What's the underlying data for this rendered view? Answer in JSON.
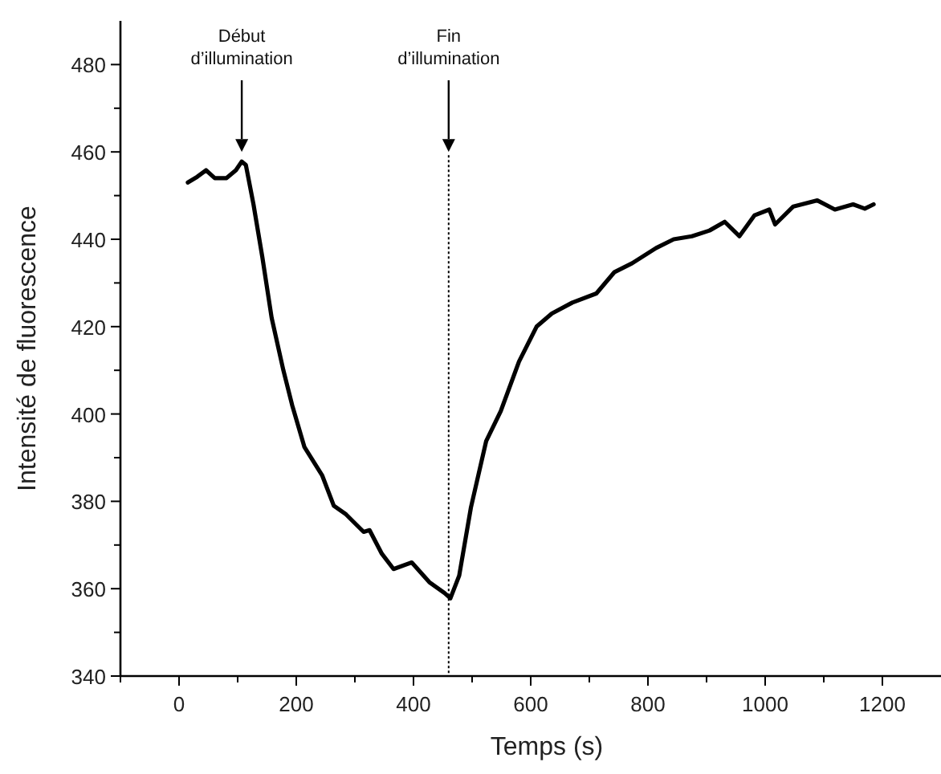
{
  "chart_data": {
    "type": "line",
    "xlabel": "Temps  (s)",
    "ylabel": "Intensité de fluorescence",
    "xlim": [
      -100,
      1300
    ],
    "ylim": [
      340,
      490
    ],
    "xticks": [
      {
        "value": -100,
        "label": null
      },
      0,
      {
        "value": 100,
        "label": null
      },
      200,
      {
        "value": 300,
        "label": null
      },
      400,
      {
        "value": 500,
        "label": null
      },
      600,
      {
        "value": 700,
        "label": null
      },
      800,
      {
        "value": 900,
        "label": null
      },
      1000,
      {
        "value": 1100,
        "label": null
      },
      1200
    ],
    "yticks": [
      340,
      {
        "value": 350,
        "label": null
      },
      360,
      {
        "value": 370,
        "label": null
      },
      380,
      {
        "value": 390,
        "label": null
      },
      400,
      {
        "value": 410,
        "label": null
      },
      420,
      {
        "value": 430,
        "label": null
      },
      440,
      {
        "value": 450,
        "label": null
      },
      460,
      {
        "value": 470,
        "label": null
      },
      480
    ],
    "grid": false,
    "marker": "none",
    "line_style": "solid",
    "series": [
      {
        "color": "#000000",
        "x": [
          15,
          31,
          46,
          61,
          81,
          97,
          107,
          114,
          127,
          142,
          158,
          178,
          193,
          214,
          244,
          264,
          285,
          315,
          325,
          346,
          366,
          397,
          427,
          453,
          463,
          478,
          498,
          524,
          549,
          580,
          610,
          636,
          671,
          712,
          743,
          773,
          814,
          844,
          875,
          905,
          931,
          956,
          982,
          1007,
          1017,
          1048,
          1089,
          1119,
          1150,
          1170,
          1185
        ],
        "values": [
          453,
          454.3,
          455.8,
          454,
          454,
          455.8,
          457.8,
          457,
          448,
          436,
          422,
          410,
          402,
          392.4,
          386,
          379,
          377,
          373,
          373.4,
          368,
          364.5,
          366,
          361.5,
          359,
          357.8,
          363,
          378.6,
          393.8,
          400.7,
          412,
          420,
          423,
          425.5,
          427.6,
          432.5,
          434.5,
          438,
          440,
          440.7,
          442,
          444,
          440.7,
          445.5,
          446.8,
          443.4,
          447.5,
          448.9,
          446.8,
          448,
          447,
          448
        ]
      }
    ],
    "ref_lines": [
      {
        "axis": "x",
        "value": 460,
        "line_style": "dotted",
        "color": "#000000"
      }
    ],
    "annotations": [
      "Début d’illumination",
      "Fin d’illumination"
    ]
  }
}
